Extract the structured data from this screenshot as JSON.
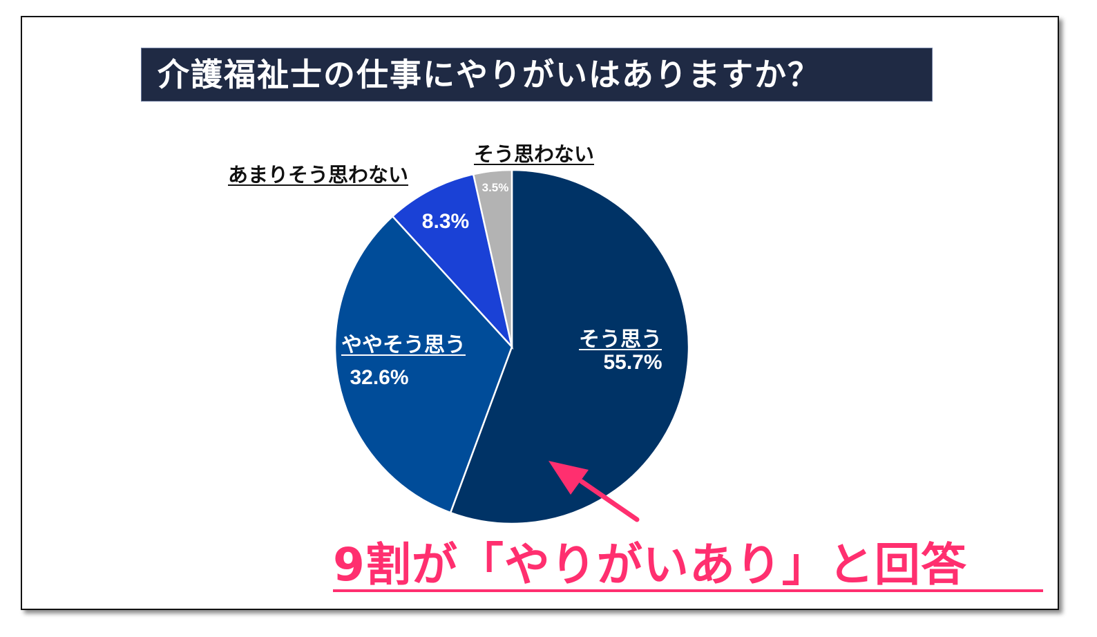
{
  "title": "介護福祉士の仕事にやりがいはありますか？",
  "caption": "9割が「やりがいあり」と回答",
  "colors": {
    "title_bg": "#1f2a44",
    "caption": "#ff2f6f",
    "arrow": "#ff2f6f"
  },
  "chart_data": {
    "type": "pie",
    "title": "介護福祉士の仕事にやりがいはありますか？",
    "slices": [
      {
        "label": "そう思う",
        "value": 55.7,
        "value_label": "55.7%",
        "color": "#003366"
      },
      {
        "label": "ややそう思う",
        "value": 32.6,
        "value_label": "32.6%",
        "color": "#004c99"
      },
      {
        "label": "あまりそう思わない",
        "value": 8.3,
        "value_label": "8.3%",
        "color": "#1a41d6"
      },
      {
        "label": "そう思わない",
        "value": 3.5,
        "value_label": "3.5%",
        "color": "#b3b3b3"
      }
    ],
    "start": "12 o'clock",
    "direction": "clockwise",
    "legend": "none"
  }
}
